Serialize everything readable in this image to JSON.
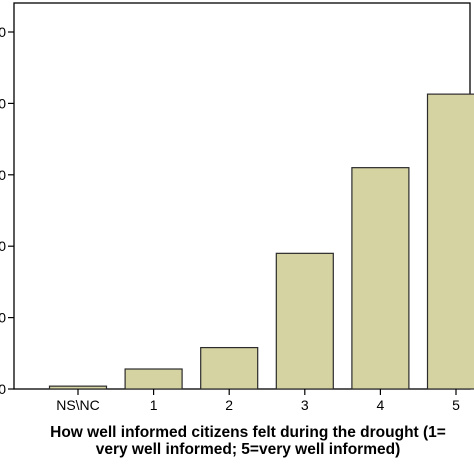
{
  "chart_data": {
    "type": "bar",
    "categories": [
      "NS\\NC",
      "1",
      "2",
      "3",
      "4",
      "5"
    ],
    "values": [
      0.4,
      2.8,
      5.8,
      19.0,
      31.0,
      41.3
    ],
    "ylim": [
      0,
      50
    ],
    "yticks": [
      0,
      10,
      20,
      30,
      40,
      50
    ],
    "ytick_labels": [
      "0",
      "0",
      "0",
      "0",
      "0",
      "0"
    ],
    "xlabel_lines": [
      "How well informed citizens felt during the drought (1=",
      "very well informed; 5=very well informed)"
    ],
    "ylabel": "",
    "title": "",
    "grid": false,
    "legend": "none",
    "colors": {
      "bar_fill": "#d6d3a3",
      "bar_stroke": "#2b2b2b",
      "axis": "#000000",
      "text": "#000000"
    }
  }
}
